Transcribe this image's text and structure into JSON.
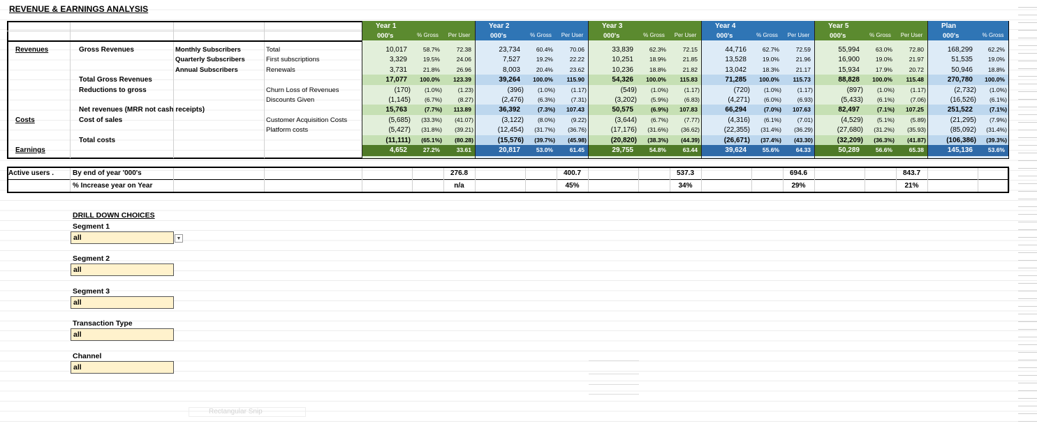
{
  "title": "REVENUE & EARNINGS ANALYSIS",
  "main_table": {
    "periods": [
      {
        "name": "Year 1",
        "columns": [
          "000's",
          "% Gross",
          "Per User"
        ]
      },
      {
        "name": "Year 2",
        "columns": [
          "000's",
          "% Gross",
          "Per User"
        ]
      },
      {
        "name": "Year 3",
        "columns": [
          "000's",
          "% Gross",
          "Per User"
        ]
      },
      {
        "name": "Year 4",
        "columns": [
          "000's",
          "% Gross",
          "Per User"
        ]
      },
      {
        "name": "Year 5",
        "columns": [
          "000's",
          "% Gross",
          "Per User"
        ]
      },
      {
        "name": "Plan",
        "columns": [
          "000's",
          "% Gross"
        ]
      }
    ],
    "rows": [
      {
        "labels": {
          "section": "Revenues",
          "group": "Gross Revenues",
          "subgroup": "Monthly Subscribers",
          "item": "Total"
        },
        "values": [
          [
            "10,017",
            "58.7%",
            "72.38"
          ],
          [
            "23,734",
            "60.4%",
            "70.06"
          ],
          [
            "33,839",
            "62.3%",
            "72.15"
          ],
          [
            "44,716",
            "62.7%",
            "72.59"
          ],
          [
            "55,994",
            "63.0%",
            "72.80"
          ],
          [
            "168,299",
            "62.2%"
          ]
        ]
      },
      {
        "labels": {
          "subgroup": "Quarterly Subscribers",
          "item": "First subscriptions"
        },
        "values": [
          [
            "3,329",
            "19.5%",
            "24.06"
          ],
          [
            "7,527",
            "19.2%",
            "22.22"
          ],
          [
            "10,251",
            "18.9%",
            "21.85"
          ],
          [
            "13,528",
            "19.0%",
            "21.96"
          ],
          [
            "16,900",
            "19.0%",
            "21.97"
          ],
          [
            "51,535",
            "19.0%"
          ]
        ]
      },
      {
        "labels": {
          "subgroup": "Annual Subscribers",
          "item": "Renewals"
        },
        "values": [
          [
            "3,731",
            "21.8%",
            "26.96"
          ],
          [
            "8,003",
            "20.4%",
            "23.62"
          ],
          [
            "10,236",
            "18.8%",
            "21.82"
          ],
          [
            "13,042",
            "18.3%",
            "21.17"
          ],
          [
            "15,934",
            "17.9%",
            "20.72"
          ],
          [
            "50,946",
            "18.8%"
          ]
        ]
      },
      {
        "labels": {
          "group": "Total Gross Revenues"
        },
        "values": [
          [
            "17,077",
            "100.0%",
            "123.39"
          ],
          [
            "39,264",
            "100.0%",
            "115.90"
          ],
          [
            "54,326",
            "100.0%",
            "115.83"
          ],
          [
            "71,285",
            "100.0%",
            "115.73"
          ],
          [
            "88,828",
            "100.0%",
            "115.48"
          ],
          [
            "270,780",
            "100.0%"
          ]
        ]
      },
      {
        "labels": {
          "group": "Reductions to gross",
          "item": "Churn Loss of Revenues"
        },
        "values": [
          [
            "(170)",
            "(1.0%)",
            "(1.23)"
          ],
          [
            "(396)",
            "(1.0%)",
            "(1.17)"
          ],
          [
            "(549)",
            "(1.0%)",
            "(1.17)"
          ],
          [
            "(720)",
            "(1.0%)",
            "(1.17)"
          ],
          [
            "(897)",
            "(1.0%)",
            "(1.17)"
          ],
          [
            "(2,732)",
            "(1.0%)"
          ]
        ]
      },
      {
        "labels": {
          "item": "Discounts Given"
        },
        "values": [
          [
            "(1,145)",
            "(6.7%)",
            "(8.27)"
          ],
          [
            "(2,476)",
            "(6.3%)",
            "(7.31)"
          ],
          [
            "(3,202)",
            "(5.9%)",
            "(6.83)"
          ],
          [
            "(4,271)",
            "(6.0%)",
            "(6.93)"
          ],
          [
            "(5,433)",
            "(6.1%)",
            "(7.06)"
          ],
          [
            "(16,526)",
            "(6.1%)"
          ]
        ]
      },
      {
        "labels": {
          "group": "Net revenues (MRR not cash receipts)"
        },
        "values": [
          [
            "15,763",
            "(7.7%)",
            "113.89"
          ],
          [
            "36,392",
            "(7.3%)",
            "107.43"
          ],
          [
            "50,575",
            "(6.9%)",
            "107.83"
          ],
          [
            "66,294",
            "(7.0%)",
            "107.63"
          ],
          [
            "82,497",
            "(7.1%)",
            "107.25"
          ],
          [
            "251,522",
            "(7.1%)"
          ]
        ]
      },
      {
        "labels": {
          "section": "Costs",
          "group": "Cost of sales",
          "item": "Customer Acquisition Costs"
        },
        "values": [
          [
            "(5,685)",
            "(33.3%)",
            "(41.07)"
          ],
          [
            "(3,122)",
            "(8.0%)",
            "(9.22)"
          ],
          [
            "(3,644)",
            "(6.7%)",
            "(7.77)"
          ],
          [
            "(4,316)",
            "(6.1%)",
            "(7.01)"
          ],
          [
            "(4,529)",
            "(5.1%)",
            "(5.89)"
          ],
          [
            "(21,295)",
            "(7.9%)"
          ]
        ]
      },
      {
        "labels": {
          "item": "Platform costs"
        },
        "values": [
          [
            "(5,427)",
            "(31.8%)",
            "(39.21)"
          ],
          [
            "(12,454)",
            "(31.7%)",
            "(36.76)"
          ],
          [
            "(17,176)",
            "(31.6%)",
            "(36.62)"
          ],
          [
            "(22,355)",
            "(31.4%)",
            "(36.29)"
          ],
          [
            "(27,680)",
            "(31.2%)",
            "(35.93)"
          ],
          [
            "(85,092)",
            "(31.4%)"
          ]
        ]
      },
      {
        "labels": {
          "group": "Total costs"
        },
        "values": [
          [
            "(11,111)",
            "(65.1%)",
            "(80.28)"
          ],
          [
            "(15,576)",
            "(39.7%)",
            "(45.98)"
          ],
          [
            "(20,820)",
            "(38.3%)",
            "(44.39)"
          ],
          [
            "(26,671)",
            "(37.4%)",
            "(43.30)"
          ],
          [
            "(32,209)",
            "(36.3%)",
            "(41.87)"
          ],
          [
            "(106,386)",
            "(39.3%)"
          ]
        ]
      },
      {
        "labels": {
          "section": "Earnings"
        },
        "values": [
          [
            "4,652",
            "27.2%",
            "33.61"
          ],
          [
            "20,817",
            "53.0%",
            "61.45"
          ],
          [
            "29,755",
            "54.8%",
            "63.44"
          ],
          [
            "39,624",
            "55.6%",
            "64.33"
          ],
          [
            "50,289",
            "56.6%",
            "65.38"
          ],
          [
            "145,136",
            "53.6%"
          ]
        ]
      }
    ]
  },
  "users_table": {
    "label": "Active users .",
    "rows": [
      {
        "label": "By end of year '000's",
        "values": [
          "276.8",
          "400.7",
          "537.3",
          "694.6",
          "843.7"
        ]
      },
      {
        "label": "% Increase year on Year",
        "values": [
          "n/a",
          "45%",
          "34%",
          "29%",
          "21%"
        ]
      }
    ]
  },
  "drill_down": {
    "title": "DRILL DOWN CHOICES",
    "fields": [
      {
        "label": "Segment 1",
        "value": "all"
      },
      {
        "label": "Segment 2",
        "value": "all"
      },
      {
        "label": "Segment 3",
        "value": "all"
      },
      {
        "label": "Transaction Type",
        "value": "all"
      },
      {
        "label": "Channel",
        "value": "all"
      }
    ]
  },
  "overlay": "Rectangular Snip"
}
